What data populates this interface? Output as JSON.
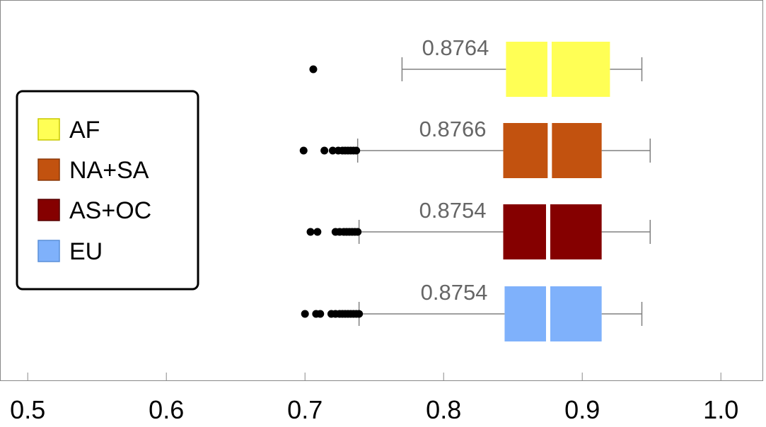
{
  "chart_data": {
    "type": "boxplot",
    "orientation": "horizontal",
    "xlim": [
      0.48,
      1.03
    ],
    "x_ticks": [
      0.5,
      0.6,
      0.7,
      0.8,
      0.9,
      1.0
    ],
    "x_tick_labels": [
      "0.5",
      "0.6",
      "0.7",
      "0.8",
      "0.9",
      "1.0"
    ],
    "legend_position": "left",
    "colors": {
      "whisker": "#808080",
      "outlier": "#000000",
      "median": "#ffffff",
      "median_label": "#666666"
    },
    "series": [
      {
        "name": "AF",
        "color": "#ffff55",
        "median": 0.8764,
        "median_label": "0.8764",
        "q1": 0.845,
        "q3": 0.92,
        "whisker_low": 0.77,
        "whisker_high": 0.943,
        "outliers": [
          0.706
        ]
      },
      {
        "name": "NA+SA",
        "color": "#c2520f",
        "median": 0.8766,
        "median_label": "0.8766",
        "q1": 0.843,
        "q3": 0.914,
        "whisker_low": 0.738,
        "whisker_high": 0.949,
        "outliers": [
          0.699,
          0.714,
          0.72,
          0.724,
          0.727,
          0.729,
          0.731,
          0.733,
          0.735,
          0.737
        ]
      },
      {
        "name": "AS+OC",
        "color": "#850000",
        "median": 0.8754,
        "median_label": "0.8754",
        "q1": 0.843,
        "q3": 0.914,
        "whisker_low": 0.739,
        "whisker_high": 0.949,
        "outliers": [
          0.704,
          0.709,
          0.722,
          0.725,
          0.728,
          0.73,
          0.732,
          0.734,
          0.736,
          0.738
        ]
      },
      {
        "name": "EU",
        "color": "#7fb1fb",
        "median": 0.8754,
        "median_label": "0.8754",
        "q1": 0.844,
        "q3": 0.914,
        "whisker_low": 0.739,
        "whisker_high": 0.943,
        "outliers": [
          0.7,
          0.708,
          0.711,
          0.719,
          0.722,
          0.725,
          0.727,
          0.729,
          0.731,
          0.733,
          0.735,
          0.737,
          0.739
        ]
      }
    ]
  }
}
